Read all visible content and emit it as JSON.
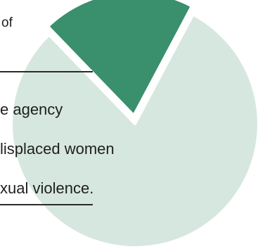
{
  "text": {
    "fragment_top": "of",
    "line1": "e agency",
    "line2": "lisplaced women",
    "line3": "xual violence."
  },
  "chart_data": {
    "type": "pie",
    "values": [
      80,
      20
    ],
    "colors": [
      "#d6e7df",
      "#3a8f6c"
    ],
    "exploded": [
      false,
      true
    ],
    "start_angle_deg": -62,
    "title": "",
    "legend": "none"
  }
}
